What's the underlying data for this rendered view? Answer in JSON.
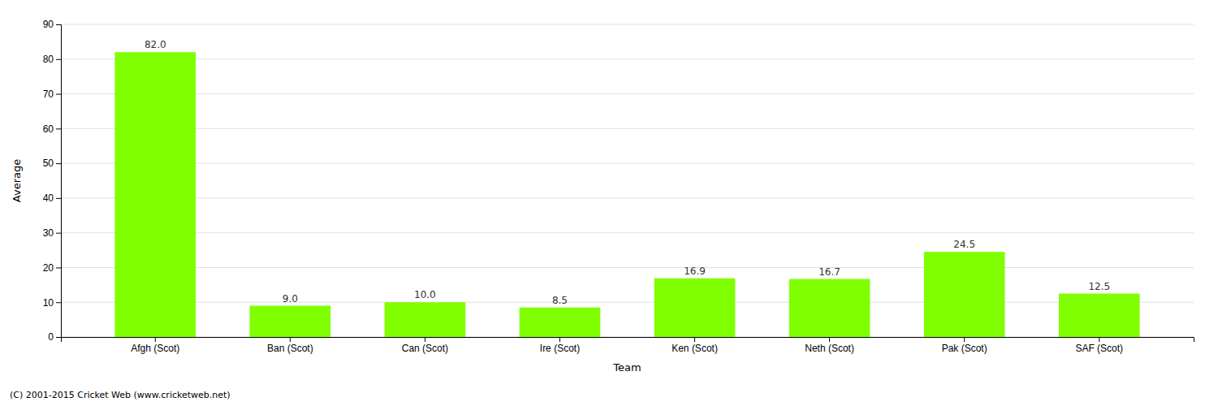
{
  "chart_data": {
    "type": "bar",
    "categories": [
      "Afgh (Scot)",
      "Ban (Scot)",
      "Can (Scot)",
      "Ire (Scot)",
      "Ken (Scot)",
      "Neth (Scot)",
      "Pak (Scot)",
      "SAF (Scot)"
    ],
    "values": [
      82.0,
      9.0,
      10.0,
      8.5,
      16.9,
      16.7,
      24.5,
      12.5
    ],
    "value_labels": [
      "82.0",
      "9.0",
      "10.0",
      "8.5",
      "16.9",
      "16.7",
      "24.5",
      "12.5"
    ],
    "color": "#7fff00",
    "xlabel": "Team",
    "ylabel": "Average",
    "ylim": [
      0,
      90
    ],
    "yticks": [
      0,
      10,
      20,
      30,
      40,
      50,
      60,
      70,
      80,
      90
    ],
    "grid": true,
    "data_labels": true,
    "annotations": [
      "(C) 2001-2015 Cricket Web (www.cricketweb.net)"
    ]
  }
}
